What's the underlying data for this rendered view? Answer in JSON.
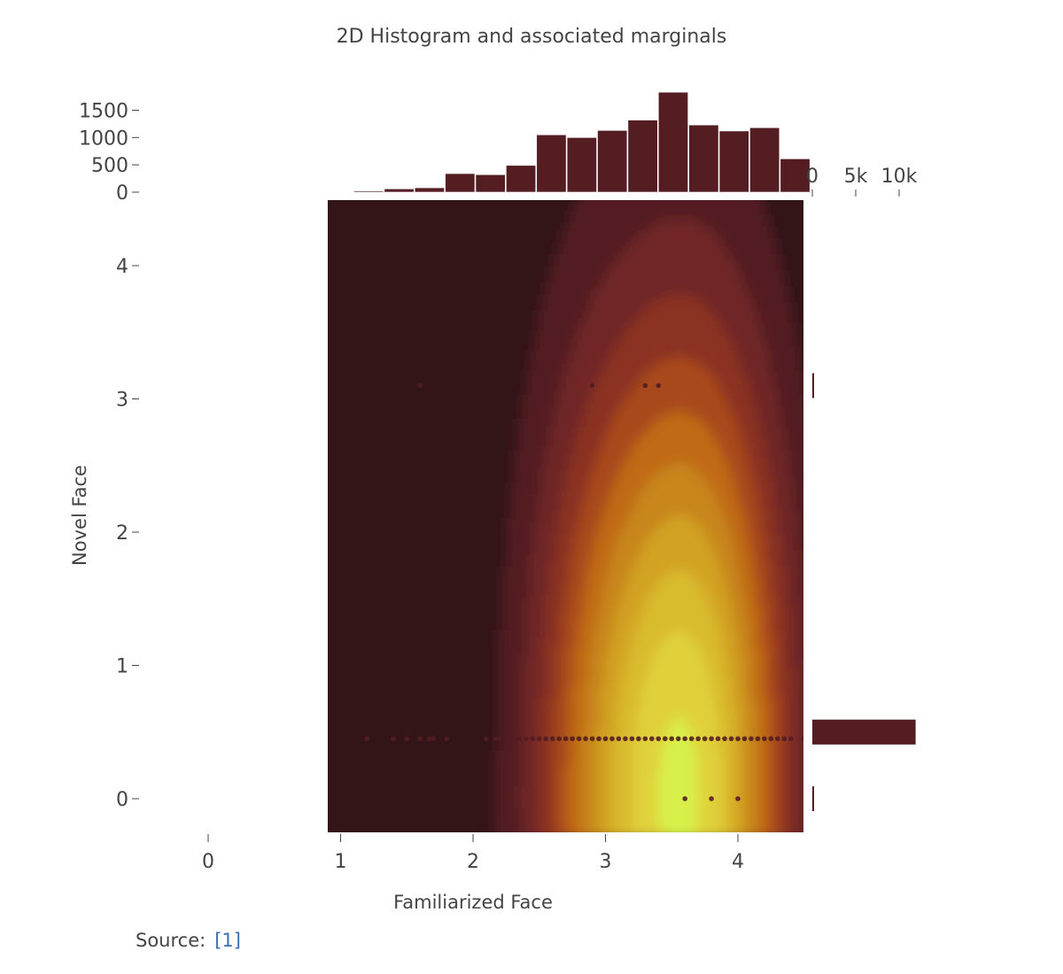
{
  "chart_data": {
    "type": "histogram2dcontour",
    "title": "2D Histogram and associated marginals",
    "xlabel": "Familiarized Face",
    "ylabel": "Novel Face",
    "main": {
      "xlim": [
        -0.1,
        4.5
      ],
      "ylim": [
        -0.25,
        4.5
      ],
      "x_tick_values": [
        0,
        1,
        2,
        3,
        4
      ],
      "x_tick_labels": [
        "0",
        "1",
        "2",
        "3",
        "4"
      ],
      "y_tick_values": [
        0,
        1,
        2,
        3,
        4
      ],
      "y_tick_labels": [
        "0",
        "1",
        "2",
        "3",
        "4"
      ],
      "colorscale": [
        "#331518",
        "#521e24",
        "#6f2628",
        "#8b3322",
        "#a8491a",
        "#c06a16",
        "#c8861a",
        "#d2a323",
        "#d9bb2e",
        "#e0d13a",
        "#d8f048"
      ],
      "density_centers": [
        {
          "x": 2.9,
          "y": 0.0,
          "weight": 0.7
        },
        {
          "x": 3.5,
          "y": 0.0,
          "weight": 1.0
        },
        {
          "x": 3.95,
          "y": 0.0,
          "weight": 0.75
        }
      ],
      "points": [
        {
          "x": 1.2,
          "y": 0.45
        },
        {
          "x": 1.4,
          "y": 0.45
        },
        {
          "x": 1.5,
          "y": 0.45
        },
        {
          "x": 1.6,
          "y": 0.45
        },
        {
          "x": 1.67,
          "y": 0.45
        },
        {
          "x": 1.7,
          "y": 0.45
        },
        {
          "x": 1.8,
          "y": 0.45
        },
        {
          "x": 2.1,
          "y": 0.45
        },
        {
          "x": 2.17,
          "y": 0.45
        },
        {
          "x": 2.2,
          "y": 0.45
        },
        {
          "x": 2.25,
          "y": 0.45
        },
        {
          "x": 2.3,
          "y": 0.45
        },
        {
          "x": 2.35,
          "y": 0.45
        },
        {
          "x": 2.4,
          "y": 0.45
        },
        {
          "x": 2.45,
          "y": 0.45
        },
        {
          "x": 2.5,
          "y": 0.45
        },
        {
          "x": 2.55,
          "y": 0.45
        },
        {
          "x": 2.6,
          "y": 0.45
        },
        {
          "x": 2.65,
          "y": 0.45
        },
        {
          "x": 2.7,
          "y": 0.45
        },
        {
          "x": 2.75,
          "y": 0.45
        },
        {
          "x": 2.8,
          "y": 0.45
        },
        {
          "x": 2.85,
          "y": 0.45
        },
        {
          "x": 2.9,
          "y": 0.45
        },
        {
          "x": 2.95,
          "y": 0.45
        },
        {
          "x": 3.0,
          "y": 0.45
        },
        {
          "x": 3.05,
          "y": 0.45
        },
        {
          "x": 3.1,
          "y": 0.45
        },
        {
          "x": 3.15,
          "y": 0.45
        },
        {
          "x": 3.2,
          "y": 0.45
        },
        {
          "x": 3.25,
          "y": 0.45
        },
        {
          "x": 3.3,
          "y": 0.45
        },
        {
          "x": 3.35,
          "y": 0.45
        },
        {
          "x": 3.4,
          "y": 0.45
        },
        {
          "x": 3.45,
          "y": 0.45
        },
        {
          "x": 3.5,
          "y": 0.45
        },
        {
          "x": 3.55,
          "y": 0.45
        },
        {
          "x": 3.6,
          "y": 0.45
        },
        {
          "x": 3.65,
          "y": 0.45
        },
        {
          "x": 3.7,
          "y": 0.45
        },
        {
          "x": 3.75,
          "y": 0.45
        },
        {
          "x": 3.8,
          "y": 0.45
        },
        {
          "x": 3.85,
          "y": 0.45
        },
        {
          "x": 3.9,
          "y": 0.45
        },
        {
          "x": 3.95,
          "y": 0.45
        },
        {
          "x": 4.0,
          "y": 0.45
        },
        {
          "x": 4.05,
          "y": 0.45
        },
        {
          "x": 4.1,
          "y": 0.45
        },
        {
          "x": 4.15,
          "y": 0.45
        },
        {
          "x": 4.2,
          "y": 0.45
        },
        {
          "x": 4.25,
          "y": 0.45
        },
        {
          "x": 4.3,
          "y": 0.45
        },
        {
          "x": 4.35,
          "y": 0.45
        },
        {
          "x": 4.4,
          "y": 0.45
        },
        {
          "x": 4.5,
          "y": 0.45
        },
        {
          "x": 1.6,
          "y": 3.1
        },
        {
          "x": 2.9,
          "y": 3.1
        },
        {
          "x": 3.3,
          "y": 3.1
        },
        {
          "x": 3.4,
          "y": 3.1
        },
        {
          "x": 3.6,
          "y": 0.0
        },
        {
          "x": 3.8,
          "y": 0.0
        },
        {
          "x": 4.0,
          "y": 0.0
        }
      ]
    },
    "top_histogram": {
      "bin_width": 0.23,
      "bins": [
        {
          "x0": 1.1,
          "value": 20
        },
        {
          "x0": 1.33,
          "value": 60
        },
        {
          "x0": 1.56,
          "value": 80
        },
        {
          "x0": 1.79,
          "value": 340
        },
        {
          "x0": 2.02,
          "value": 320
        },
        {
          "x0": 2.25,
          "value": 490
        },
        {
          "x0": 2.48,
          "value": 1050
        },
        {
          "x0": 2.71,
          "value": 1000
        },
        {
          "x0": 2.94,
          "value": 1130
        },
        {
          "x0": 3.17,
          "value": 1320
        },
        {
          "x0": 3.4,
          "value": 1830
        },
        {
          "x0": 3.63,
          "value": 1230
        },
        {
          "x0": 3.86,
          "value": 1120
        },
        {
          "x0": 4.09,
          "value": 1180
        },
        {
          "x0": 4.32,
          "value": 610
        }
      ],
      "ylim": [
        0,
        1800
      ],
      "tick_values": [
        0,
        500,
        1000,
        1500
      ],
      "tick_labels": [
        "0",
        "500",
        "1000",
        "1500"
      ]
    },
    "right_histogram": {
      "bins": [
        {
          "y0": -0.1,
          "y1": 0.1,
          "value": 120
        },
        {
          "y0": 0.4,
          "y1": 0.6,
          "value": 11900
        },
        {
          "y0": 3.0,
          "y1": 3.2,
          "value": 120
        }
      ],
      "xlim": [
        0,
        10000
      ],
      "tick_values": [
        0,
        5000,
        10000
      ],
      "tick_labels": [
        "0",
        "5k",
        "10k"
      ]
    },
    "bar_color": "#531d22",
    "marker_color": "#531d22"
  },
  "source": {
    "label": "Source:",
    "link_text": "[1]"
  }
}
